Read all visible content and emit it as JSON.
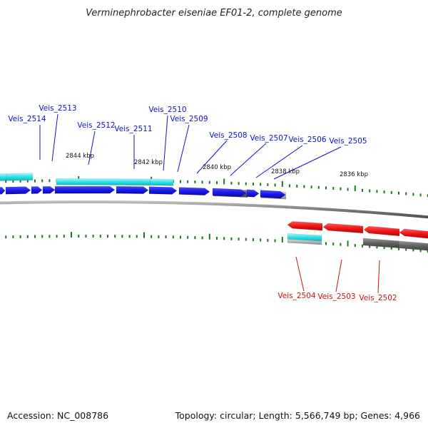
{
  "title": "Verminephrobacter eiseniae EF01-2, complete genome",
  "footer": {
    "accession": "Accession: NC_008786",
    "summary": "Topology: circular; Length: 5,566,749 bp; Genes: 4,966"
  },
  "scale_labels": [
    "2844 kbp",
    "2842 kbp",
    "2840 kbp",
    "2838 kbp",
    "2836 kbp"
  ],
  "forward_gene_labels": [
    "Veis_2514",
    "Veis_2513",
    "Veis_2512",
    "Veis_2511",
    "Veis_2510",
    "Veis_2509",
    "Veis_2508",
    "Veis_2507",
    "Veis_2506",
    "Veis_2505"
  ],
  "reverse_gene_labels": [
    "Veis_2504",
    "Veis_2503",
    "Veis_2502"
  ],
  "colors": {
    "forward_cds": "#1010e0",
    "reverse_cds": "#e01010",
    "forward_label": "#1010c8",
    "reverse_label": "#c81010",
    "rna_feature": "#22d8e0",
    "grey_feature": "#6a6a6a",
    "light_grey_feature": "#b4b4b4",
    "gc_tick": "#1a7a1a",
    "backbone": "#7a7a7a"
  }
}
